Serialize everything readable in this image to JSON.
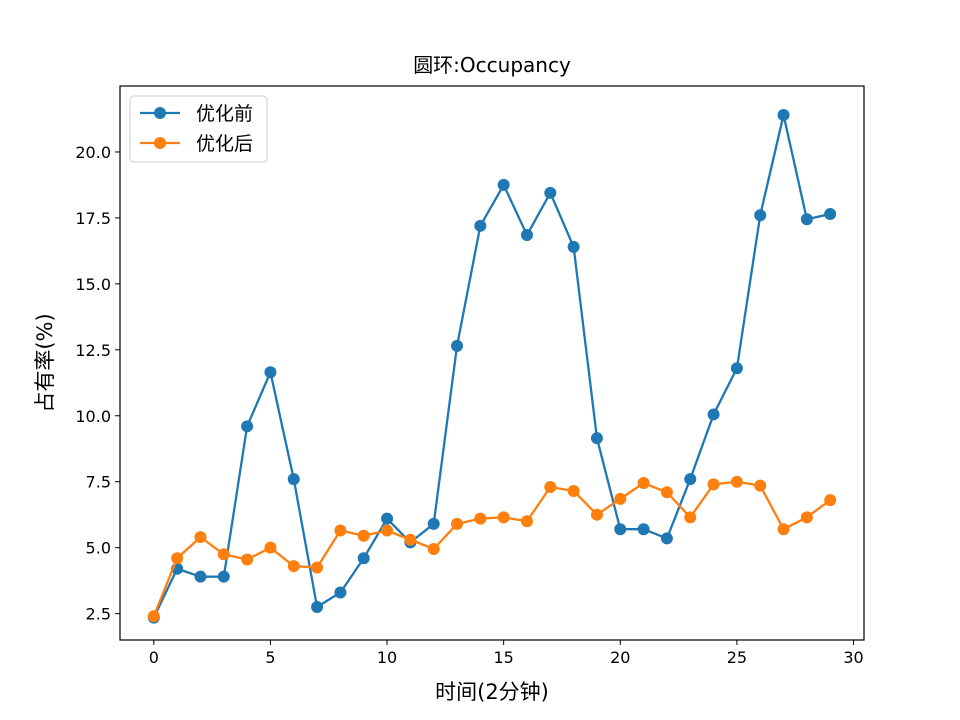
{
  "chart_data": {
    "type": "line",
    "title": "圆环:Occupancy",
    "xlabel": "时间(2分钟)",
    "ylabel": "占有率(%)",
    "xlim": [
      -1.45,
      30.45
    ],
    "ylim": [
      1.5,
      22.5
    ],
    "xticks": [
      0,
      5,
      10,
      15,
      20,
      25,
      30
    ],
    "xtick_labels": [
      "0",
      "5",
      "10",
      "15",
      "20",
      "25",
      "30"
    ],
    "yticks": [
      2.5,
      5.0,
      7.5,
      10.0,
      12.5,
      15.0,
      17.5,
      20.0
    ],
    "ytick_labels": [
      "2.5",
      "5.0",
      "7.5",
      "10.0",
      "12.5",
      "15.0",
      "17.5",
      "20.0"
    ],
    "grid": false,
    "legend_position": "top-left",
    "x": [
      0,
      1,
      2,
      3,
      4,
      5,
      6,
      7,
      8,
      9,
      10,
      11,
      12,
      13,
      14,
      15,
      16,
      17,
      18,
      19,
      20,
      21,
      22,
      23,
      24,
      25,
      26,
      27,
      28,
      29
    ],
    "series": [
      {
        "name": "优化前",
        "color": "#1f77b4",
        "values": [
          2.35,
          4.2,
          3.9,
          3.9,
          9.6,
          11.65,
          7.6,
          2.75,
          3.3,
          4.6,
          6.1,
          5.2,
          5.9,
          12.65,
          17.2,
          18.75,
          16.85,
          18.45,
          16.4,
          9.15,
          5.7,
          5.7,
          5.35,
          7.6,
          10.05,
          11.8,
          17.6,
          21.4,
          17.45,
          17.65
        ]
      },
      {
        "name": "优化后",
        "color": "#ff7f0e",
        "values": [
          2.4,
          4.6,
          5.4,
          4.75,
          4.55,
          5.0,
          4.3,
          4.25,
          5.65,
          5.45,
          5.65,
          5.3,
          4.95,
          5.9,
          6.1,
          6.15,
          6.0,
          7.3,
          7.15,
          6.25,
          6.85,
          7.45,
          7.1,
          6.15,
          7.4,
          7.5,
          7.35,
          5.7,
          6.15,
          6.8
        ]
      }
    ]
  }
}
